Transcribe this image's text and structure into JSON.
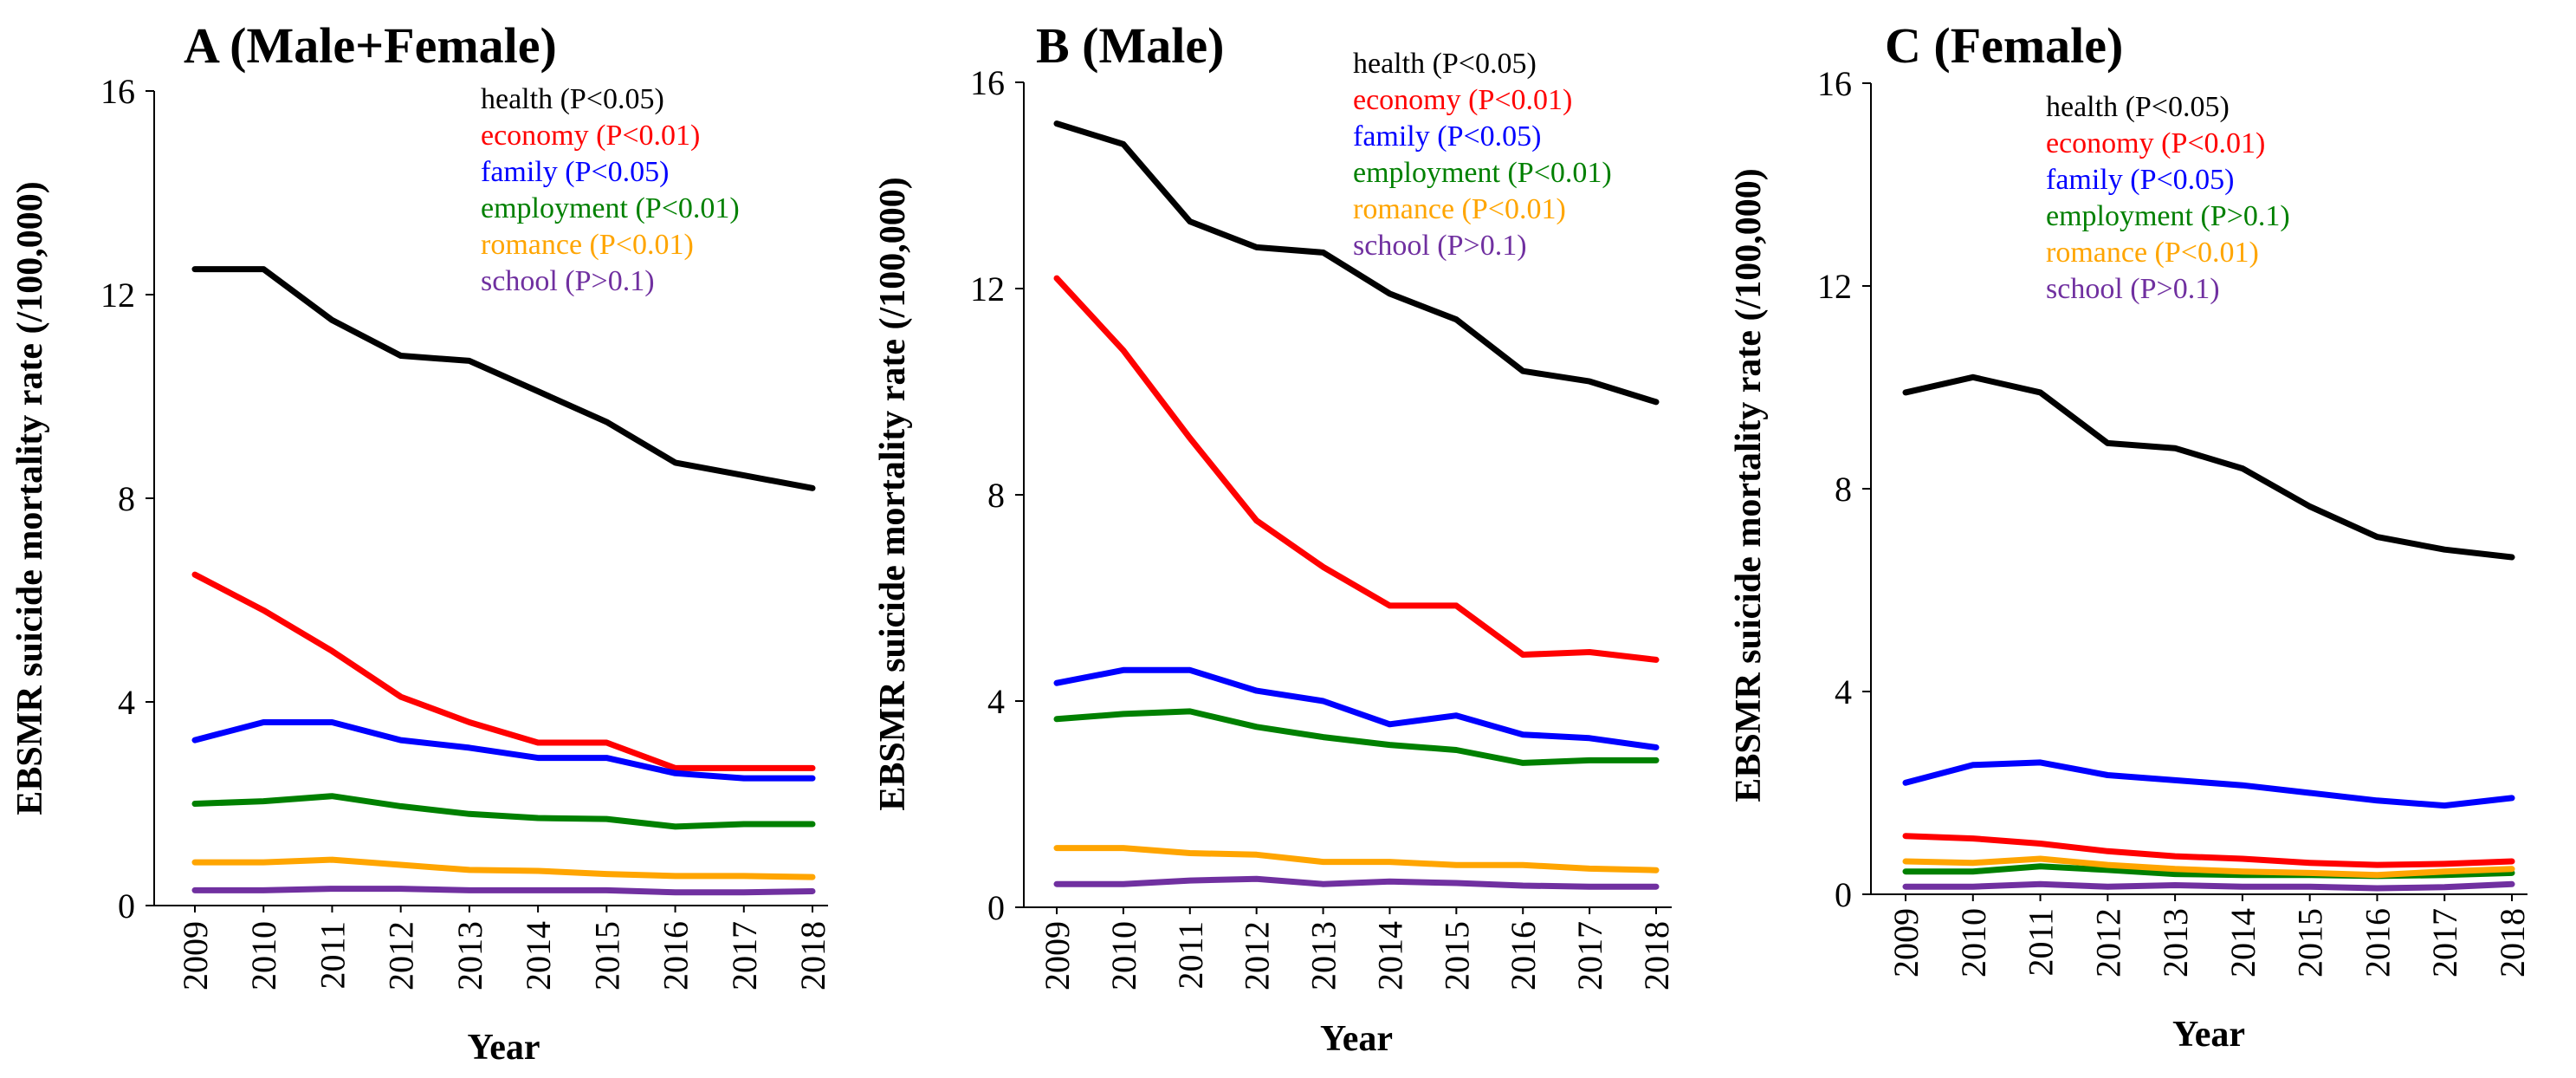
{
  "chart_data": [
    {
      "type": "line",
      "title": "A (Male+Female)",
      "xlabel": "Year",
      "ylabel": "EBSMR suicide mortality rate (/100,000)",
      "ylim": [
        0,
        16
      ],
      "yticks": [
        "0",
        "4",
        "8",
        "12",
        "16"
      ],
      "categories": [
        "2009",
        "2010",
        "2011",
        "2012",
        "2013",
        "2014",
        "2015",
        "2016",
        "2017",
        "2018"
      ],
      "legend_position": "top-right",
      "series": [
        {
          "name": "health",
          "p": "(P<0.05)",
          "color": "#000000",
          "values": [
            12.5,
            12.5,
            11.5,
            10.8,
            10.7,
            10.1,
            9.5,
            8.7,
            8.45,
            8.2
          ]
        },
        {
          "name": "economy",
          "p": "(P<0.01)",
          "color": "#ff0000",
          "values": [
            6.5,
            5.8,
            5.0,
            4.1,
            3.6,
            3.2,
            3.2,
            2.7,
            2.7,
            2.7
          ]
        },
        {
          "name": "family",
          "p": "(P<0.05)",
          "color": "#0000ff",
          "values": [
            3.25,
            3.6,
            3.6,
            3.25,
            3.1,
            2.9,
            2.9,
            2.6,
            2.5,
            2.5
          ]
        },
        {
          "name": "employment",
          "p": "(P<0.01)",
          "color": "#008000",
          "values": [
            2.0,
            2.05,
            2.15,
            1.95,
            1.8,
            1.72,
            1.7,
            1.55,
            1.6,
            1.6
          ]
        },
        {
          "name": "romance",
          "p": "(P<0.01)",
          "color": "#ffa500",
          "values": [
            0.85,
            0.85,
            0.9,
            0.8,
            0.7,
            0.68,
            0.62,
            0.58,
            0.58,
            0.56
          ]
        },
        {
          "name": "school",
          "p": "(P>0.1)",
          "color": "#7030a0",
          "values": [
            0.3,
            0.3,
            0.33,
            0.33,
            0.3,
            0.3,
            0.3,
            0.26,
            0.26,
            0.28
          ]
        }
      ]
    },
    {
      "type": "line",
      "title": "B (Male)",
      "xlabel": "Year",
      "ylabel": "EBSMR suicide mortality rate (/100,000)",
      "ylim": [
        0,
        16
      ],
      "yticks": [
        "0",
        "4",
        "8",
        "12",
        "16"
      ],
      "categories": [
        "2009",
        "2010",
        "2011",
        "2012",
        "2013",
        "2014",
        "2015",
        "2016",
        "2017",
        "2018"
      ],
      "legend_position": "top-right",
      "series": [
        {
          "name": "health",
          "p": "(P<0.05)",
          "color": "#000000",
          "values": [
            15.2,
            14.8,
            13.3,
            12.8,
            12.7,
            11.9,
            11.4,
            10.4,
            10.2,
            9.8
          ]
        },
        {
          "name": "economy",
          "p": "(P<0.01)",
          "color": "#ff0000",
          "values": [
            12.2,
            10.8,
            9.1,
            7.5,
            6.6,
            5.85,
            5.85,
            4.9,
            4.95,
            4.8
          ]
        },
        {
          "name": "family",
          "p": "(P<0.05)",
          "color": "#0000ff",
          "values": [
            4.35,
            4.6,
            4.6,
            4.2,
            4.0,
            3.55,
            3.72,
            3.35,
            3.28,
            3.1
          ]
        },
        {
          "name": "employment",
          "p": "(P<0.01)",
          "color": "#008000",
          "values": [
            3.65,
            3.75,
            3.8,
            3.5,
            3.3,
            3.15,
            3.05,
            2.8,
            2.85,
            2.85
          ]
        },
        {
          "name": "romance",
          "p": "(P<0.01)",
          "color": "#ffa500",
          "values": [
            1.15,
            1.15,
            1.05,
            1.02,
            0.88,
            0.88,
            0.82,
            0.82,
            0.75,
            0.72
          ]
        },
        {
          "name": "school",
          "p": "(P>0.1)",
          "color": "#7030a0",
          "values": [
            0.45,
            0.45,
            0.52,
            0.55,
            0.45,
            0.5,
            0.47,
            0.42,
            0.4,
            0.4
          ]
        }
      ]
    },
    {
      "type": "line",
      "title": "C (Female)",
      "xlabel": "Year",
      "ylabel": "EBSMR suicide mortality rate (/100,000)",
      "ylim": [
        0,
        16
      ],
      "yticks": [
        "0",
        "4",
        "8",
        "12",
        "16"
      ],
      "categories": [
        "2009",
        "2010",
        "2011",
        "2012",
        "2013",
        "2014",
        "2015",
        "2016",
        "2017",
        "2018"
      ],
      "legend_position": "top-right",
      "series": [
        {
          "name": "health",
          "p": "(P<0.05)",
          "color": "#000000",
          "values": [
            9.9,
            10.2,
            9.9,
            8.9,
            8.8,
            8.4,
            7.65,
            7.05,
            6.8,
            6.65
          ]
        },
        {
          "name": "economy",
          "p": "(P<0.01)",
          "color": "#ff0000",
          "values": [
            1.15,
            1.1,
            1.0,
            0.85,
            0.75,
            0.7,
            0.62,
            0.58,
            0.6,
            0.65
          ]
        },
        {
          "name": "family",
          "p": "(P<0.05)",
          "color": "#0000ff",
          "values": [
            2.2,
            2.55,
            2.6,
            2.35,
            2.25,
            2.15,
            2.0,
            1.85,
            1.75,
            1.9
          ]
        },
        {
          "name": "employment",
          "p": "(P>0.1)",
          "color": "#008000",
          "values": [
            0.45,
            0.45,
            0.55,
            0.48,
            0.4,
            0.38,
            0.38,
            0.36,
            0.38,
            0.42
          ]
        },
        {
          "name": "romance",
          "p": "(P<0.01)",
          "color": "#ffa500",
          "values": [
            0.65,
            0.62,
            0.7,
            0.58,
            0.5,
            0.45,
            0.42,
            0.38,
            0.45,
            0.5
          ]
        },
        {
          "name": "school",
          "p": "(P>0.1)",
          "color": "#7030a0",
          "values": [
            0.15,
            0.15,
            0.2,
            0.15,
            0.18,
            0.15,
            0.15,
            0.12,
            0.14,
            0.2
          ]
        }
      ]
    }
  ]
}
